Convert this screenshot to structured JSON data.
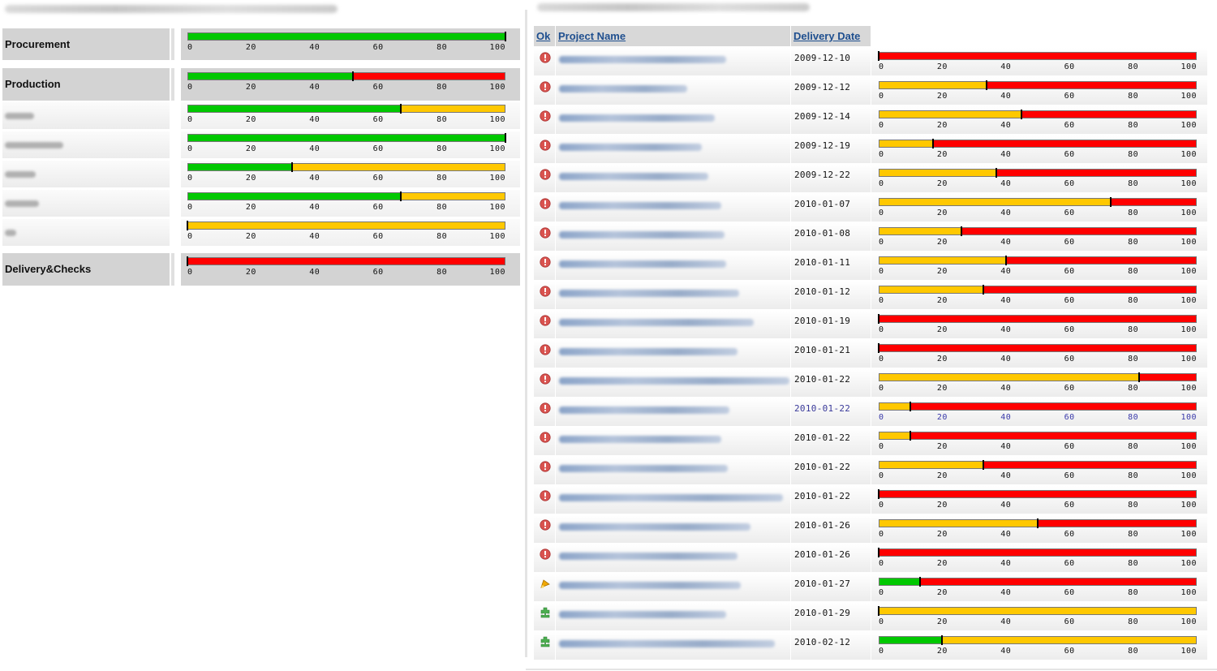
{
  "left": {
    "sections": [
      {
        "kind": "major",
        "label": "Procurement",
        "done": 100,
        "prog": 0,
        "marker": 100
      },
      {
        "kind": "major",
        "label": "Production",
        "done": 52,
        "prog": 0,
        "marker": 52
      },
      {
        "kind": "minor",
        "label": "",
        "done": 67,
        "prog": 33,
        "marker": 67
      },
      {
        "kind": "minor",
        "label": "",
        "done": 100,
        "prog": 0,
        "marker": 100
      },
      {
        "kind": "minor",
        "label": "",
        "done": 33,
        "prog": 67,
        "marker": 33
      },
      {
        "kind": "minor",
        "label": "",
        "done": 67,
        "prog": 33,
        "marker": 67
      },
      {
        "kind": "minor",
        "label": "",
        "done": 0,
        "prog": 100,
        "marker": 0
      },
      {
        "kind": "major",
        "label": "Delivery&Checks",
        "done": 0,
        "prog": 0,
        "marker": 0
      }
    ]
  },
  "scale": {
    "ticks": [
      "0",
      "20",
      "40",
      "60",
      "80",
      "100"
    ]
  },
  "table": {
    "headers": {
      "ok": "Ok",
      "project_name": "Project Name",
      "delivery_date": "Delivery Date"
    },
    "rows": [
      {
        "status": "error",
        "date": "2009-12-10",
        "done": 0,
        "prog": 0,
        "marker": 0
      },
      {
        "status": "error",
        "date": "2009-12-12",
        "done": 0,
        "prog": 34,
        "marker": 34
      },
      {
        "status": "error",
        "date": "2009-12-14",
        "done": 0,
        "prog": 45,
        "marker": 45
      },
      {
        "status": "error",
        "date": "2009-12-19",
        "done": 0,
        "prog": 17,
        "marker": 17
      },
      {
        "status": "error",
        "date": "2009-12-22",
        "done": 0,
        "prog": 37,
        "marker": 37
      },
      {
        "status": "error",
        "date": "2010-01-07",
        "done": 0,
        "prog": 73,
        "marker": 73
      },
      {
        "status": "error",
        "date": "2010-01-08",
        "done": 0,
        "prog": 26,
        "marker": 26
      },
      {
        "status": "error",
        "date": "2010-01-11",
        "done": 0,
        "prog": 40,
        "marker": 40
      },
      {
        "status": "error",
        "date": "2010-01-12",
        "done": 0,
        "prog": 33,
        "marker": 33
      },
      {
        "status": "error",
        "date": "2010-01-19",
        "done": 0,
        "prog": 0,
        "marker": 0
      },
      {
        "status": "error",
        "date": "2010-01-21",
        "done": 0,
        "prog": 0,
        "marker": 0
      },
      {
        "status": "error",
        "date": "2010-01-22",
        "done": 0,
        "prog": 82,
        "marker": 82
      },
      {
        "status": "error",
        "date": "2010-01-22",
        "done": 0,
        "prog": 10,
        "marker": 10,
        "highlight": true
      },
      {
        "status": "error",
        "date": "2010-01-22",
        "done": 0,
        "prog": 10,
        "marker": 10
      },
      {
        "status": "error",
        "date": "2010-01-22",
        "done": 0,
        "prog": 33,
        "marker": 33
      },
      {
        "status": "error",
        "date": "2010-01-22",
        "done": 0,
        "prog": 0,
        "marker": 0
      },
      {
        "status": "error",
        "date": "2010-01-26",
        "done": 0,
        "prog": 50,
        "marker": 50
      },
      {
        "status": "error",
        "date": "2010-01-26",
        "done": 0,
        "prog": 0,
        "marker": 0
      },
      {
        "status": "warning",
        "date": "2010-01-27",
        "done": 13,
        "prog": 0,
        "marker": 13
      },
      {
        "status": "ok",
        "date": "2010-01-29",
        "done": 0,
        "prog": 100,
        "marker": 0
      },
      {
        "status": "ok",
        "date": "2010-02-12",
        "done": 20,
        "prog": 80,
        "marker": 20
      }
    ]
  },
  "colors": {
    "done": "#00c800",
    "in_progress": "#ffc800",
    "remaining": "#ff0000",
    "error_icon": "#d9534f",
    "warning_icon": "#f0a800",
    "ok_icon": "#4caf50",
    "link": "#1f4f8f"
  },
  "icons": {
    "error": "error-icon",
    "warning": "warning-icon",
    "ok": "puzzle-ok-icon"
  }
}
